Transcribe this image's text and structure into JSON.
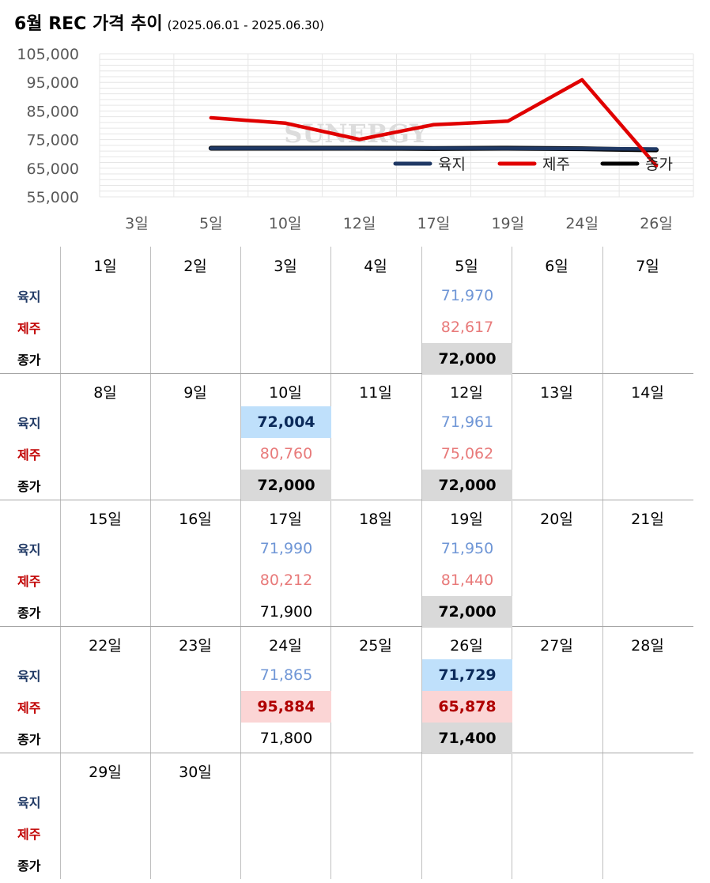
{
  "title": "6월 REC 가격 추이",
  "subtitle": "(2025.06.01 - 2025.06.30)",
  "chart_data": {
    "type": "line",
    "categories": [
      "3일",
      "5일",
      "10일",
      "12일",
      "17일",
      "19일",
      "24일",
      "26일"
    ],
    "series": [
      {
        "name": "육지",
        "color": "#1f3864",
        "values": [
          null,
          71970,
          72004,
          71961,
          71990,
          71950,
          71865,
          71729
        ]
      },
      {
        "name": "제주",
        "color": "#e00000",
        "values": [
          null,
          82617,
          80760,
          75062,
          80212,
          81440,
          95884,
          65878
        ]
      },
      {
        "name": "종가",
        "color": "#000000",
        "values": [
          null,
          72000,
          72000,
          72000,
          71900,
          72000,
          71800,
          71400
        ]
      }
    ],
    "y_ticks": [
      "105,000",
      "95,000",
      "85,000",
      "75,000",
      "65,000",
      "55,000"
    ],
    "ylim": [
      55000,
      105000
    ],
    "grid": true,
    "legend": "bottom-right",
    "watermark": "SUNERGY"
  },
  "calendar": {
    "row_labels": [
      "육지",
      "제주",
      "종가"
    ],
    "weeks": [
      {
        "days": [
          "1일",
          "2일",
          "3일",
          "4일",
          "5일",
          "6일",
          "7일"
        ],
        "cells": [
          {
            "col": 4,
            "yuk": "71,970",
            "jeju": "82,617",
            "avg": "72,000",
            "avg_hl": true
          }
        ]
      },
      {
        "days": [
          "8일",
          "9일",
          "10일",
          "11일",
          "12일",
          "13일",
          "14일"
        ],
        "cells": [
          {
            "col": 2,
            "yuk": "72,004",
            "yuk_hl": true,
            "jeju": "80,760",
            "avg": "72,000",
            "avg_hl": true
          },
          {
            "col": 4,
            "yuk": "71,961",
            "jeju": "75,062",
            "avg": "72,000",
            "avg_hl": true
          }
        ]
      },
      {
        "days": [
          "15일",
          "16일",
          "17일",
          "18일",
          "19일",
          "20일",
          "21일"
        ],
        "cells": [
          {
            "col": 2,
            "yuk": "71,990",
            "jeju": "80,212",
            "avg": "71,900"
          },
          {
            "col": 4,
            "yuk": "71,950",
            "jeju": "81,440",
            "avg": "72,000",
            "avg_hl": true
          }
        ]
      },
      {
        "days": [
          "22일",
          "23일",
          "24일",
          "25일",
          "26일",
          "27일",
          "28일"
        ],
        "cells": [
          {
            "col": 2,
            "yuk": "71,865",
            "jeju": "95,884",
            "jeju_hl": true,
            "avg": "71,800"
          },
          {
            "col": 4,
            "yuk": "71,729",
            "yuk_hl": true,
            "jeju": "65,878",
            "jeju_hl": true,
            "avg": "71,400",
            "avg_hl": true
          }
        ]
      },
      {
        "days": [
          "29일",
          "30일",
          "",
          "",
          "",
          "",
          ""
        ],
        "cells": []
      }
    ]
  }
}
